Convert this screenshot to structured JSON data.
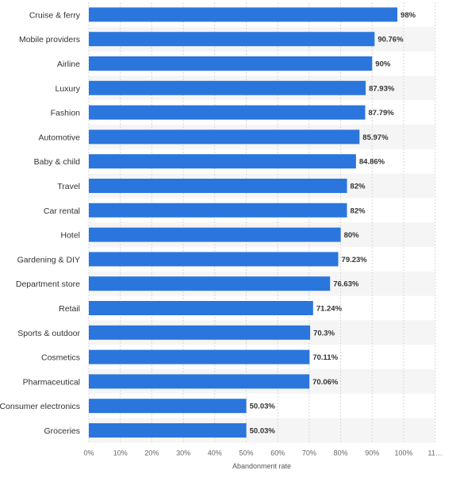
{
  "chart_data": {
    "type": "bar",
    "orientation": "horizontal",
    "categories": [
      "Cruise & ferry",
      "Mobile providers",
      "Airline",
      "Luxury",
      "Fashion",
      "Automotive",
      "Baby & child",
      "Travel",
      "Car rental",
      "Hotel",
      "Gardening & DIY",
      "Department store",
      "Retail",
      "Sports & outdoor",
      "Cosmetics",
      "Pharmaceutical",
      "Consumer electronics",
      "Groceries"
    ],
    "values": [
      98,
      90.76,
      90,
      87.93,
      87.79,
      85.97,
      84.86,
      82,
      82,
      80,
      79.23,
      76.63,
      71.24,
      70.3,
      70.11,
      70.06,
      50.03,
      50.03
    ],
    "value_labels": [
      "98%",
      "90.76%",
      "90%",
      "87.93%",
      "87.79%",
      "85.97%",
      "84.86%",
      "82%",
      "82%",
      "80%",
      "79.23%",
      "76.63%",
      "71.24%",
      "70.3%",
      "70.11%",
      "70.06%",
      "50.03%",
      "50.03%"
    ],
    "xlabel": "Abandonment rate",
    "xlim": [
      0,
      110
    ],
    "xticks": [
      "0%",
      "10%",
      "20%",
      "30%",
      "40%",
      "50%",
      "60%",
      "70%",
      "80%",
      "90%",
      "100%",
      "11…"
    ],
    "grid": "vertical dashed",
    "bar_color": "#2a76dd",
    "band_color": "#f5f5f5"
  }
}
